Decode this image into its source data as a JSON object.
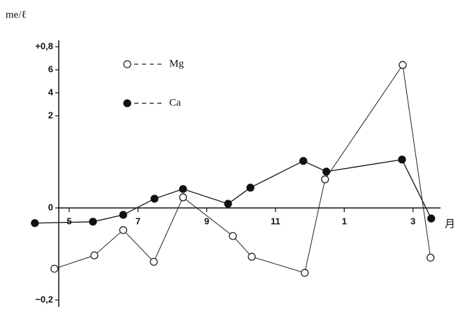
{
  "chart_data": {
    "type": "line",
    "y_label": "me/ℓ",
    "x_unit": "月",
    "x": [],
    "series": [
      {
        "name": "Mg",
        "marker": "open",
        "color": "#222222",
        "x": [
          4.57,
          5.73,
          6.57,
          7.46,
          8.31,
          9.76,
          10.31,
          11.85,
          12.44,
          14.7,
          15.51
        ],
        "values": [
          -0.132,
          -0.103,
          -0.048,
          -0.117,
          0.023,
          -0.061,
          -0.106,
          -0.141,
          0.062,
          0.642,
          -0.108
        ]
      },
      {
        "name": "Ca",
        "marker": "filled",
        "color": "#111111",
        "x": [
          4.0,
          5.69,
          6.57,
          7.48,
          8.31,
          9.62,
          10.27,
          11.81,
          12.48,
          14.68,
          15.53
        ],
        "values": [
          -0.033,
          -0.03,
          -0.015,
          0.02,
          0.041,
          0.009,
          0.044,
          0.102,
          0.079,
          0.105,
          -0.023
        ]
      }
    ],
    "xlim": [
      3.8,
      15.8
    ],
    "xticks": [
      5,
      7,
      9,
      11,
      {
        "value": 13,
        "label": "1"
      },
      {
        "value": 15,
        "label": "3"
      }
    ],
    "ylim": [
      -0.215,
      0.855
    ],
    "yticks": [
      {
        "value": 0.8,
        "label": "+0,8"
      },
      {
        "value": 0.6,
        "label": "6"
      },
      {
        "value": 0.4,
        "label": "4"
      },
      {
        "value": 0.2,
        "label": "2"
      },
      0,
      {
        "value": -0.2,
        "label": "−0,2"
      }
    ],
    "y_scale_break": 0.2,
    "legend": "upper left"
  }
}
